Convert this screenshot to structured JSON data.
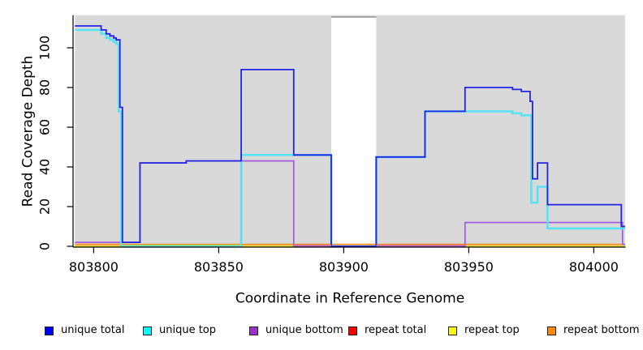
{
  "figure": {
    "background": "#ffffff"
  },
  "chart_data": {
    "type": "line",
    "subtype": "step-coverage-plot",
    "title": "",
    "xlabel": "Coordinate in Reference Genome",
    "ylabel": "Read Coverage Depth",
    "xlim": [
      803792.5,
      804012.5
    ],
    "ylim": [
      0,
      116.5
    ],
    "x_ticks": [
      803800,
      803850,
      803900,
      803950,
      804000
    ],
    "y_ticks": [
      0,
      20,
      40,
      60,
      80,
      100
    ],
    "grid": "off",
    "legend_position": "bottom",
    "plot_background": "#d9d9d9",
    "axis_color": "#000000",
    "masked_region": {
      "x_start": 803895,
      "x_end": 803913,
      "fill": "#ffffff",
      "top_border_color": "#8f8f8f",
      "note": "white vertical band with no coverage data"
    },
    "series": [
      {
        "name": "unique total",
        "color": "#2323e6",
        "legend_color": "#0000ff",
        "points": [
          [
            803792.5,
            111
          ],
          [
            803803,
            109
          ],
          [
            803805,
            107
          ],
          [
            803806.5,
            106
          ],
          [
            803808,
            105
          ],
          [
            803809,
            104
          ],
          [
            803810.5,
            70
          ],
          [
            803811.5,
            2
          ],
          [
            803818.5,
            42
          ],
          [
            803837,
            43
          ],
          [
            803859,
            89
          ],
          [
            803880,
            46
          ],
          [
            803895,
            0
          ],
          [
            803913,
            45
          ],
          [
            803932.5,
            68
          ],
          [
            803948.5,
            80
          ],
          [
            803967.5,
            79
          ],
          [
            803971,
            78
          ],
          [
            803974.5,
            73
          ],
          [
            803975.5,
            34
          ],
          [
            803977.5,
            42
          ],
          [
            803981.5,
            21
          ],
          [
            804011,
            10
          ]
        ]
      },
      {
        "name": "unique top",
        "color": "#5ae2f2",
        "legend_color": "#00ffff",
        "points": [
          [
            803792.5,
            109
          ],
          [
            803803,
            107
          ],
          [
            803805,
            105
          ],
          [
            803806.5,
            104
          ],
          [
            803808,
            103
          ],
          [
            803809,
            102
          ],
          [
            803810,
            68
          ],
          [
            803811,
            0
          ],
          [
            803859,
            46
          ],
          [
            803895,
            0
          ],
          [
            803913,
            45
          ],
          [
            803932.5,
            68
          ],
          [
            803967.5,
            67
          ],
          [
            803971,
            66
          ],
          [
            803975,
            22
          ],
          [
            803977.5,
            30
          ],
          [
            803981.5,
            9
          ]
        ]
      },
      {
        "name": "unique bottom",
        "color": "#a15ce0",
        "legend_color": "#9932cc",
        "points": [
          [
            803792.5,
            2
          ],
          [
            803818.5,
            42
          ],
          [
            803837,
            43
          ],
          [
            803880,
            0
          ],
          [
            803948.5,
            12
          ],
          [
            804011.5,
            1
          ]
        ]
      },
      {
        "name": "repeat total",
        "color": "#e61919",
        "legend_color": "#ff0000",
        "points": [
          [
            803792.5,
            0
          ]
        ]
      },
      {
        "name": "repeat top",
        "color": "#f0f000",
        "legend_color": "#ffff00",
        "points": [
          [
            803792.5,
            0
          ]
        ]
      },
      {
        "name": "repeat bottom",
        "color": "#ff9015",
        "legend_color": "#ff8c00",
        "points": [
          [
            803792.5,
            1
          ]
        ]
      }
    ],
    "draw_order": [
      "repeat total",
      "repeat top",
      "repeat bottom",
      "unique bottom",
      "unique top",
      "unique total"
    ],
    "blend_artifacts": [
      {
        "x_start": 803811,
        "x_end": 803859,
        "y": 0.5,
        "color": "#8bd98b"
      },
      {
        "x_start": 803880,
        "x_end": 803895,
        "y": 0.5,
        "color": "#d4719c"
      },
      {
        "x_start": 803913,
        "x_end": 803948.5,
        "y": 0.5,
        "color": "#d4719c"
      }
    ]
  }
}
